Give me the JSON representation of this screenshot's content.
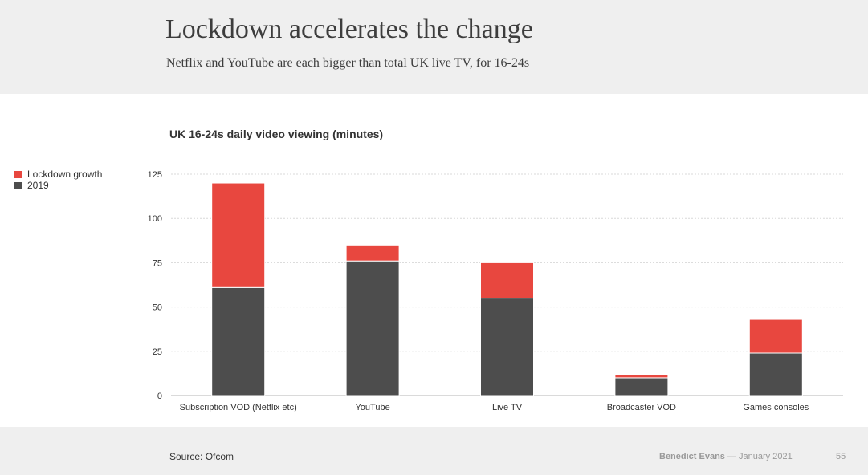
{
  "header": {
    "title": "Lockdown accelerates the change",
    "subtitle": "Netflix and YouTube are each bigger than total UK live TV, for 16-24s"
  },
  "chart_data": {
    "type": "bar",
    "stacked": true,
    "title": "UK 16-24s daily video viewing (minutes)",
    "xlabel": "",
    "ylabel": "",
    "categories": [
      "Subscription VOD (Netflix etc)",
      "YouTube",
      "Live TV",
      "Broadcaster VOD",
      "Games consoles"
    ],
    "series": [
      {
        "name": "2019",
        "values": [
          61,
          76,
          55,
          10,
          24
        ],
        "color": "#4d4d4d"
      },
      {
        "name": "Lockdown growth",
        "values": [
          59,
          9,
          20,
          2,
          19
        ],
        "color": "#e8473f"
      }
    ],
    "ylim": [
      0,
      125
    ],
    "yticks": [
      0,
      25,
      50,
      75,
      100,
      125
    ],
    "grid": true,
    "legend_position": "top-left"
  },
  "legend": {
    "items": [
      {
        "label": "Lockdown growth",
        "color": "#e8473f"
      },
      {
        "label": "2019",
        "color": "#4d4d4d"
      }
    ]
  },
  "footer": {
    "source": "Source: Ofcom",
    "author": "Benedict Evans",
    "separator": "—",
    "date": "January 2021",
    "page": "55"
  }
}
